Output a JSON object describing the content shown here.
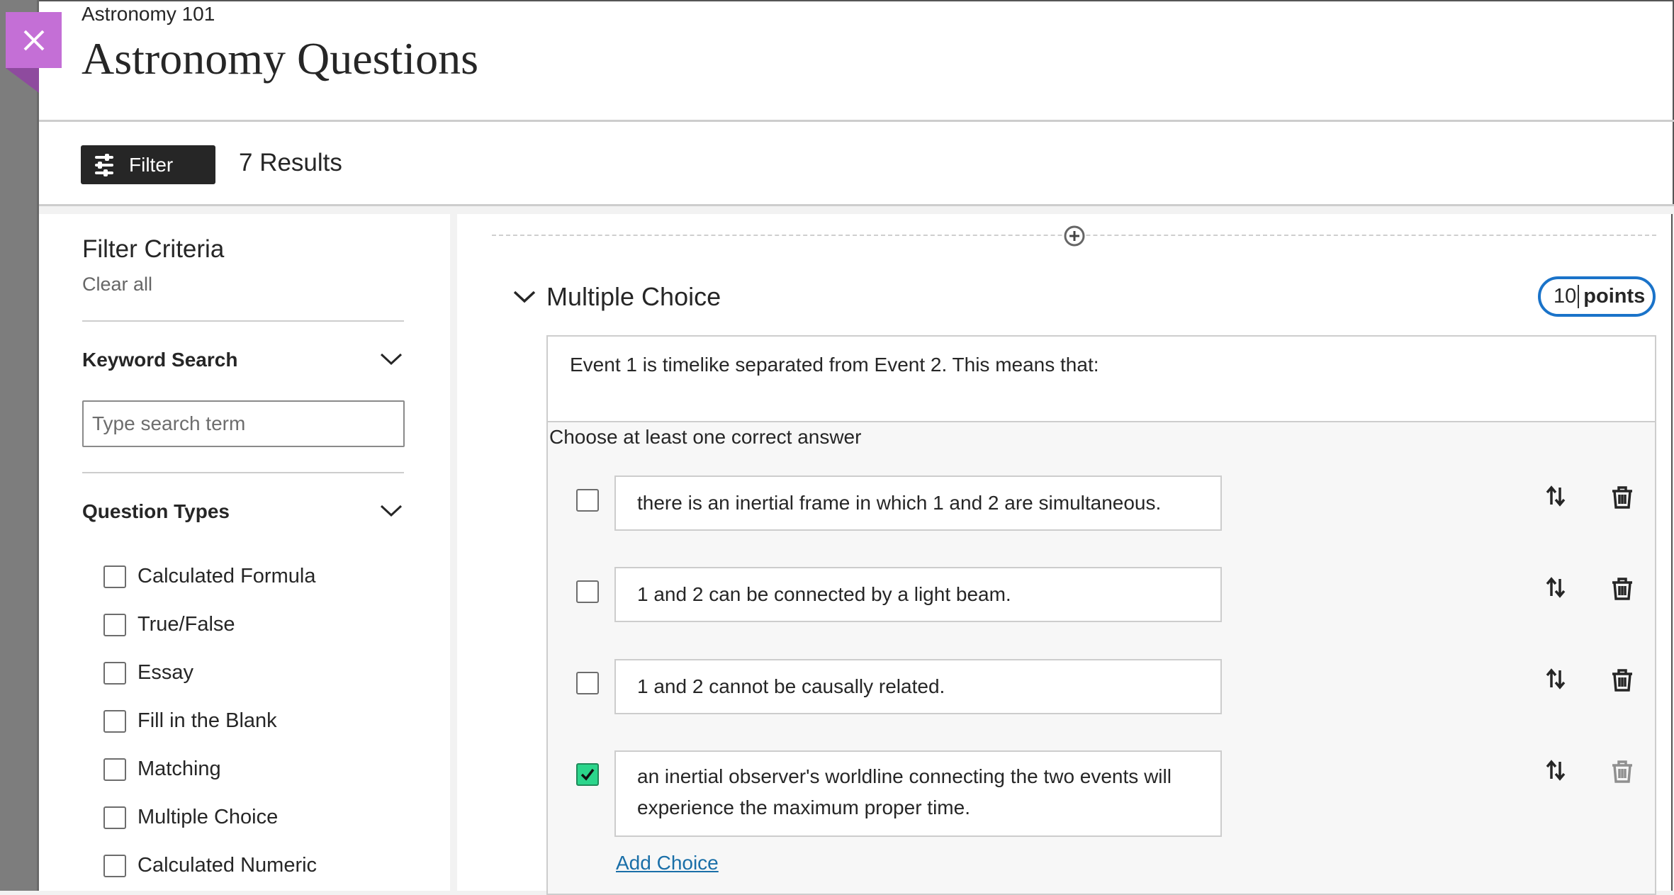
{
  "header": {
    "course": "Astronomy 101",
    "title": "Astronomy Questions",
    "close_icon": "close-icon"
  },
  "toolbar": {
    "filter_label": "Filter",
    "results": "7 Results"
  },
  "filters": {
    "title": "Filter Criteria",
    "clear_all": "Clear all",
    "keyword": {
      "label": "Keyword Search",
      "placeholder": "Type search term",
      "value": ""
    },
    "question_types": {
      "label": "Question Types",
      "items": [
        {
          "label": "Calculated Formula",
          "checked": false
        },
        {
          "label": "True/False",
          "checked": false
        },
        {
          "label": "Essay",
          "checked": false
        },
        {
          "label": "Fill in the Blank",
          "checked": false
        },
        {
          "label": "Matching",
          "checked": false
        },
        {
          "label": "Multiple Choice",
          "checked": false
        },
        {
          "label": "Calculated Numeric",
          "checked": false
        }
      ]
    }
  },
  "question": {
    "type": "Multiple Choice",
    "points_value": "10",
    "points_label": "points",
    "prompt": "Event 1 is timelike separated from Event 2. This means that:",
    "hint": "Choose at least one correct answer",
    "choices": [
      {
        "text": "there is an inertial frame in which 1 and 2 are simultaneous.",
        "correct": false
      },
      {
        "text": "1 and 2 can be connected by a light beam.",
        "correct": false
      },
      {
        "text": "1 and 2 cannot be causally related.",
        "correct": false
      },
      {
        "text": "an inertial observer's worldline connecting the two events will experience the maximum proper time.",
        "correct": true
      }
    ],
    "add_choice": "Add Choice"
  },
  "colors": {
    "close_badge": "#c46fd6",
    "accent_blue": "#1a73c9",
    "check_green": "#2bd58b",
    "link": "#1a6fa8"
  }
}
